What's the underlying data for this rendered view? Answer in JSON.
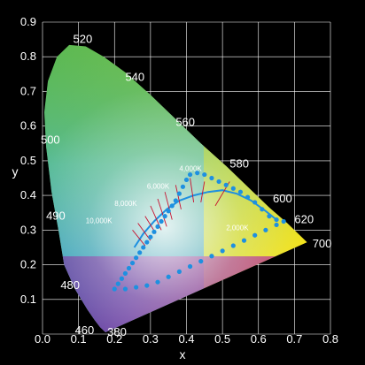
{
  "chart_data": {
    "type": "scatter",
    "title": "",
    "xlabel": "x",
    "ylabel": "y",
    "xlim": [
      0,
      0.8
    ],
    "ylim": [
      0,
      0.9
    ],
    "grid": true,
    "x_ticks": [
      "0.0",
      "0.1",
      "0.2",
      "0.3",
      "0.4",
      "0.5",
      "0.6",
      "0.7",
      "0.8"
    ],
    "y_ticks": [
      "0.1",
      "0.2",
      "0.3",
      "0.4",
      "0.5",
      "0.6",
      "0.7",
      "0.8",
      "0.9"
    ],
    "colors": {
      "background": "#000000",
      "grid": "#ffffff",
      "gamut_points": "#1e90e0",
      "green": "#4bb34f",
      "yellow": "#f7e51e",
      "red": "#e8305a",
      "blue": "#1f8fd6",
      "violet": "#4a3a9a"
    },
    "spectral_locus": [
      {
        "x": 0.175,
        "y": 0.005
      },
      {
        "x": 0.17,
        "y": 0.01
      },
      {
        "x": 0.16,
        "y": 0.02
      },
      {
        "x": 0.145,
        "y": 0.04
      },
      {
        "x": 0.125,
        "y": 0.07
      },
      {
        "x": 0.09,
        "y": 0.13
      },
      {
        "x": 0.06,
        "y": 0.2
      },
      {
        "x": 0.045,
        "y": 0.295
      },
      {
        "x": 0.025,
        "y": 0.41
      },
      {
        "x": 0.01,
        "y": 0.54
      },
      {
        "x": 0.005,
        "y": 0.64
      },
      {
        "x": 0.015,
        "y": 0.73
      },
      {
        "x": 0.04,
        "y": 0.8
      },
      {
        "x": 0.074,
        "y": 0.834
      },
      {
        "x": 0.12,
        "y": 0.83
      },
      {
        "x": 0.17,
        "y": 0.8
      },
      {
        "x": 0.23,
        "y": 0.755
      },
      {
        "x": 0.3,
        "y": 0.69
      },
      {
        "x": 0.37,
        "y": 0.62
      },
      {
        "x": 0.44,
        "y": 0.55
      },
      {
        "x": 0.51,
        "y": 0.485
      },
      {
        "x": 0.575,
        "y": 0.42
      },
      {
        "x": 0.63,
        "y": 0.365
      },
      {
        "x": 0.68,
        "y": 0.32
      },
      {
        "x": 0.735,
        "y": 0.265
      }
    ],
    "wavelength_labels": [
      {
        "text": "380",
        "x": 0.18,
        "y": -0.005
      },
      {
        "text": "460",
        "x": 0.09,
        "y": 0.0
      },
      {
        "text": "480",
        "x": 0.05,
        "y": 0.13
      },
      {
        "text": "490",
        "x": 0.01,
        "y": 0.33
      },
      {
        "text": "500",
        "x": -0.005,
        "y": 0.55
      },
      {
        "text": "520",
        "x": 0.085,
        "y": 0.84
      },
      {
        "text": "540",
        "x": 0.23,
        "y": 0.73
      },
      {
        "text": "560",
        "x": 0.37,
        "y": 0.6
      },
      {
        "text": "580",
        "x": 0.52,
        "y": 0.48
      },
      {
        "text": "600",
        "x": 0.64,
        "y": 0.38
      },
      {
        "text": "620",
        "x": 0.7,
        "y": 0.32
      },
      {
        "text": "700",
        "x": 0.75,
        "y": 0.25
      }
    ],
    "planckian_locus": [
      {
        "x": 0.255,
        "y": 0.25
      },
      {
        "x": 0.28,
        "y": 0.29
      },
      {
        "x": 0.31,
        "y": 0.325
      },
      {
        "x": 0.345,
        "y": 0.36
      },
      {
        "x": 0.38,
        "y": 0.385
      },
      {
        "x": 0.42,
        "y": 0.4
      },
      {
        "x": 0.46,
        "y": 0.41
      },
      {
        "x": 0.5,
        "y": 0.415
      },
      {
        "x": 0.54,
        "y": 0.405
      },
      {
        "x": 0.58,
        "y": 0.385
      },
      {
        "x": 0.62,
        "y": 0.355
      },
      {
        "x": 0.65,
        "y": 0.33
      }
    ],
    "cct_labels": [
      {
        "text": "10,000K",
        "x": 0.12,
        "y": 0.32
      },
      {
        "text": "8,000K",
        "x": 0.2,
        "y": 0.37
      },
      {
        "text": "6,000K",
        "x": 0.29,
        "y": 0.42
      },
      {
        "text": "4,000K",
        "x": 0.38,
        "y": 0.47
      },
      {
        "text": "2,000K",
        "x": 0.51,
        "y": 0.3
      }
    ],
    "isotherms": [
      {
        "x1": 0.25,
        "y1": 0.3,
        "x2": 0.285,
        "y2": 0.255
      },
      {
        "x1": 0.265,
        "y1": 0.32,
        "x2": 0.3,
        "y2": 0.27
      },
      {
        "x1": 0.285,
        "y1": 0.34,
        "x2": 0.315,
        "y2": 0.29
      },
      {
        "x1": 0.3,
        "y1": 0.37,
        "x2": 0.33,
        "y2": 0.3
      },
      {
        "x1": 0.32,
        "y1": 0.39,
        "x2": 0.345,
        "y2": 0.31
      },
      {
        "x1": 0.34,
        "y1": 0.41,
        "x2": 0.36,
        "y2": 0.33
      },
      {
        "x1": 0.37,
        "y1": 0.43,
        "x2": 0.385,
        "y2": 0.36
      },
      {
        "x1": 0.41,
        "y1": 0.45,
        "x2": 0.42,
        "y2": 0.38
      },
      {
        "x1": 0.45,
        "y1": 0.44,
        "x2": 0.44,
        "y2": 0.38
      },
      {
        "x1": 0.52,
        "y1": 0.44,
        "x2": 0.48,
        "y2": 0.37
      }
    ],
    "gamut_points": [
      {
        "x": 0.2,
        "y": 0.13
      },
      {
        "x": 0.21,
        "y": 0.145
      },
      {
        "x": 0.22,
        "y": 0.16
      },
      {
        "x": 0.23,
        "y": 0.175
      },
      {
        "x": 0.24,
        "y": 0.19
      },
      {
        "x": 0.25,
        "y": 0.205
      },
      {
        "x": 0.26,
        "y": 0.22
      },
      {
        "x": 0.27,
        "y": 0.235
      },
      {
        "x": 0.28,
        "y": 0.25
      },
      {
        "x": 0.29,
        "y": 0.265
      },
      {
        "x": 0.3,
        "y": 0.28
      },
      {
        "x": 0.31,
        "y": 0.295
      },
      {
        "x": 0.32,
        "y": 0.31
      },
      {
        "x": 0.33,
        "y": 0.325
      },
      {
        "x": 0.34,
        "y": 0.34
      },
      {
        "x": 0.35,
        "y": 0.355
      },
      {
        "x": 0.36,
        "y": 0.37
      },
      {
        "x": 0.37,
        "y": 0.385
      },
      {
        "x": 0.38,
        "y": 0.405
      },
      {
        "x": 0.39,
        "y": 0.425
      },
      {
        "x": 0.4,
        "y": 0.445
      },
      {
        "x": 0.41,
        "y": 0.46
      },
      {
        "x": 0.43,
        "y": 0.465
      },
      {
        "x": 0.45,
        "y": 0.46
      },
      {
        "x": 0.47,
        "y": 0.45
      },
      {
        "x": 0.49,
        "y": 0.44
      },
      {
        "x": 0.51,
        "y": 0.43
      },
      {
        "x": 0.53,
        "y": 0.42
      },
      {
        "x": 0.55,
        "y": 0.41
      },
      {
        "x": 0.57,
        "y": 0.395
      },
      {
        "x": 0.59,
        "y": 0.38
      },
      {
        "x": 0.61,
        "y": 0.36
      },
      {
        "x": 0.63,
        "y": 0.34
      },
      {
        "x": 0.65,
        "y": 0.33
      },
      {
        "x": 0.67,
        "y": 0.325
      },
      {
        "x": 0.65,
        "y": 0.315
      },
      {
        "x": 0.62,
        "y": 0.3
      },
      {
        "x": 0.59,
        "y": 0.285
      },
      {
        "x": 0.56,
        "y": 0.27
      },
      {
        "x": 0.53,
        "y": 0.255
      },
      {
        "x": 0.5,
        "y": 0.24
      },
      {
        "x": 0.47,
        "y": 0.225
      },
      {
        "x": 0.44,
        "y": 0.21
      },
      {
        "x": 0.41,
        "y": 0.195
      },
      {
        "x": 0.38,
        "y": 0.18
      },
      {
        "x": 0.35,
        "y": 0.165
      },
      {
        "x": 0.32,
        "y": 0.15
      },
      {
        "x": 0.29,
        "y": 0.14
      },
      {
        "x": 0.26,
        "y": 0.135
      },
      {
        "x": 0.23,
        "y": 0.13
      }
    ]
  }
}
